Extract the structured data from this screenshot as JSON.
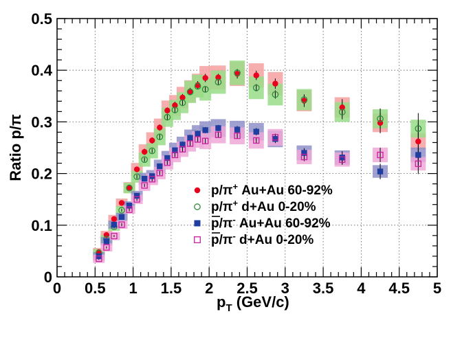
{
  "chart_data": {
    "type": "scatter",
    "xlabel_main": "p",
    "xlabel_sub": "T",
    "xlabel_rest": " (GeV/c)",
    "ylabel": "Ratio p/π",
    "xlim": [
      0,
      5
    ],
    "ylim": [
      0,
      0.5
    ],
    "x_ticks": [
      0,
      0.5,
      1,
      1.5,
      2,
      2.5,
      3,
      3.5,
      4,
      4.5,
      5
    ],
    "x_tick_labels": [
      "0",
      "0.5",
      "1",
      "1.5",
      "2",
      "2.5",
      "3",
      "3.5",
      "4",
      "4.5",
      "5"
    ],
    "y_ticks": [
      0,
      0.1,
      0.2,
      0.3,
      0.4,
      0.5
    ],
    "y_tick_labels": [
      "0",
      "0.1",
      "0.2",
      "0.3",
      "0.4",
      "0.5"
    ],
    "grid": true,
    "legend_position": "center-right",
    "series": [
      {
        "name": "p/π⁺ Au+Au 60-92%",
        "marker": "filled-circle",
        "color": "#e8001c",
        "band_color": "#f4a0a0",
        "x": [
          0.55,
          0.65,
          0.75,
          0.85,
          0.95,
          1.05,
          1.15,
          1.25,
          1.35,
          1.45,
          1.55,
          1.65,
          1.75,
          1.85,
          1.95,
          2.12,
          2.37,
          2.62,
          2.87,
          3.25,
          3.75,
          4.25,
          4.75
        ],
        "y": [
          0.048,
          0.081,
          0.112,
          0.143,
          0.173,
          0.208,
          0.242,
          0.264,
          0.289,
          0.322,
          0.332,
          0.347,
          0.359,
          0.371,
          0.385,
          0.386,
          0.393,
          0.39,
          0.374,
          0.341,
          0.328,
          0.298,
          0.262
        ],
        "err": [
          0.003,
          0.003,
          0.004,
          0.004,
          0.005,
          0.005,
          0.006,
          0.006,
          0.006,
          0.006,
          0.007,
          0.007,
          0.007,
          0.008,
          0.008,
          0.007,
          0.009,
          0.009,
          0.01,
          0.012,
          0.016,
          0.02,
          0.035
        ]
      },
      {
        "name": "p/π⁺ d+Au 0-20%",
        "marker": "open-circle",
        "color": "#2e8b3e",
        "band_color": "#99dd88",
        "x": [
          0.55,
          0.65,
          0.75,
          0.85,
          0.95,
          1.05,
          1.15,
          1.25,
          1.35,
          1.45,
          1.55,
          1.65,
          1.75,
          1.85,
          1.95,
          2.12,
          2.37,
          2.62,
          2.87,
          3.25,
          3.75,
          4.25,
          4.75
        ],
        "y": [
          0.046,
          0.073,
          0.097,
          0.129,
          0.172,
          0.194,
          0.227,
          0.244,
          0.271,
          0.309,
          0.323,
          0.337,
          0.358,
          0.369,
          0.363,
          0.377,
          0.395,
          0.366,
          0.353,
          0.343,
          0.319,
          0.306,
          0.287
        ],
        "err": [
          0.002,
          0.002,
          0.003,
          0.003,
          0.003,
          0.004,
          0.004,
          0.004,
          0.005,
          0.005,
          0.005,
          0.006,
          0.006,
          0.006,
          0.006,
          0.006,
          0.007,
          0.007,
          0.008,
          0.01,
          0.014,
          0.02,
          0.03
        ]
      },
      {
        "name": "p̄/π⁻ Au+Au 60-92%",
        "marker": "filled-square",
        "color": "#1f3ea0",
        "band_color": "#8f90c8",
        "x": [
          0.55,
          0.65,
          0.75,
          0.85,
          0.95,
          1.05,
          1.15,
          1.25,
          1.35,
          1.45,
          1.55,
          1.65,
          1.75,
          1.85,
          1.95,
          2.12,
          2.37,
          2.62,
          2.87,
          3.25,
          3.75,
          4.25,
          4.75
        ],
        "y": [
          0.04,
          0.069,
          0.101,
          0.116,
          0.138,
          0.157,
          0.19,
          0.195,
          0.214,
          0.23,
          0.245,
          0.256,
          0.269,
          0.277,
          0.284,
          0.288,
          0.285,
          0.281,
          0.267,
          0.24,
          0.231,
          0.204,
          0.236
        ],
        "err": [
          0.002,
          0.003,
          0.003,
          0.003,
          0.004,
          0.004,
          0.004,
          0.005,
          0.005,
          0.005,
          0.005,
          0.006,
          0.006,
          0.006,
          0.006,
          0.006,
          0.007,
          0.007,
          0.008,
          0.009,
          0.012,
          0.015,
          0.02
        ]
      },
      {
        "name": "p̄/π⁻ d+Au 0-20%",
        "marker": "open-square",
        "color": "#c81f9c",
        "band_color": "#eea8d8",
        "x": [
          0.55,
          0.65,
          0.75,
          0.85,
          0.95,
          1.05,
          1.15,
          1.25,
          1.35,
          1.45,
          1.55,
          1.65,
          1.75,
          1.85,
          1.95,
          2.12,
          2.37,
          2.62,
          2.87,
          3.25,
          3.75,
          4.25,
          4.75
        ],
        "y": [
          0.035,
          0.057,
          0.079,
          0.101,
          0.13,
          0.15,
          0.177,
          0.189,
          0.201,
          0.221,
          0.236,
          0.247,
          0.258,
          0.266,
          0.263,
          0.275,
          0.273,
          0.264,
          0.27,
          0.232,
          0.227,
          0.236,
          0.219
        ],
        "err": [
          0.002,
          0.002,
          0.002,
          0.003,
          0.003,
          0.003,
          0.003,
          0.004,
          0.004,
          0.004,
          0.004,
          0.005,
          0.005,
          0.005,
          0.005,
          0.005,
          0.005,
          0.006,
          0.007,
          0.008,
          0.01,
          0.014,
          0.02
        ]
      }
    ]
  },
  "legend": {
    "items": [
      {
        "base": "p/π",
        "sup": "+",
        "rest": " Au+Au 60-92%",
        "overline": false
      },
      {
        "base": "p/π",
        "sup": "+",
        "rest": " d+Au 0-20%",
        "overline": false
      },
      {
        "base": "p/π",
        "sup": "-",
        "rest": " Au+Au 60-92%",
        "overline": true
      },
      {
        "base": "p/π",
        "sup": "-",
        "rest": " d+Au 0-20%",
        "overline": true
      }
    ]
  }
}
